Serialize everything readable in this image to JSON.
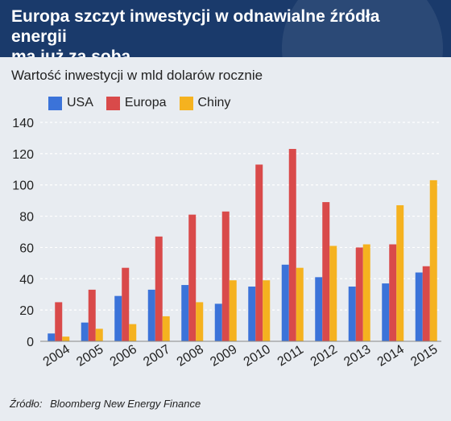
{
  "header": {
    "title_line1": "Europa szczyt inwestycji w odnawialne źródła energii",
    "title_line2": "ma już za sobą"
  },
  "colors": {
    "header_bg": "#1a3a6b",
    "usa": "#3b73d9",
    "europa": "#d94a4a",
    "chiny": "#f5b21f"
  },
  "source": {
    "label": "Źródło:",
    "text": "Bloomberg New Energy Finance"
  },
  "chart_data": {
    "type": "bar",
    "title": "",
    "subtitle": "Wartość inwestycji w mld dolarów rocznie",
    "xlabel": "",
    "ylabel": "",
    "ylim": [
      0,
      140
    ],
    "yticks": [
      0,
      20,
      40,
      60,
      80,
      100,
      120,
      140
    ],
    "grid": true,
    "legend_position": "top-left",
    "categories": [
      "2004",
      "2005",
      "2006",
      "2007",
      "2008",
      "2009",
      "2010",
      "2011",
      "2012",
      "2013",
      "2014",
      "2015"
    ],
    "series": [
      {
        "name": "USA",
        "color": "#3b73d9",
        "values": [
          5,
          12,
          29,
          33,
          36,
          24,
          35,
          49,
          41,
          35,
          37,
          44
        ]
      },
      {
        "name": "Europa",
        "color": "#d94a4a",
        "values": [
          25,
          33,
          47,
          67,
          81,
          83,
          113,
          123,
          89,
          60,
          62,
          48
        ]
      },
      {
        "name": "Chiny",
        "color": "#f5b21f",
        "values": [
          3,
          8,
          11,
          16,
          25,
          39,
          39,
          47,
          61,
          62,
          87,
          103
        ]
      }
    ]
  }
}
